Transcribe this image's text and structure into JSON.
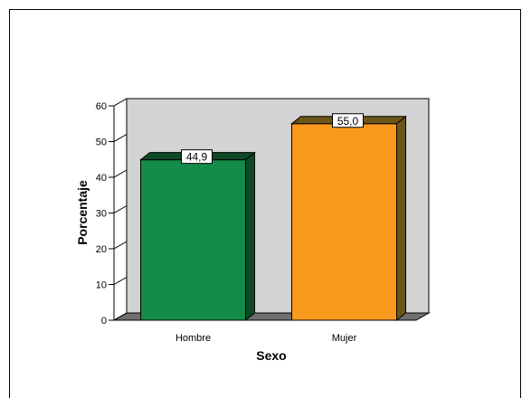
{
  "chart_data": {
    "type": "bar",
    "categories": [
      "Hombre",
      "Mujer"
    ],
    "values": [
      44.9,
      55.0
    ],
    "data_labels": [
      "44,9",
      "55,0"
    ],
    "xlabel": "Sexo",
    "ylabel": "Porcentaje",
    "ylim": [
      0,
      60
    ],
    "yticks": [
      "0",
      "10",
      "20",
      "30",
      "40",
      "50",
      "60"
    ],
    "bar_colors": [
      "#128c48",
      "#f99a1f"
    ],
    "bar_side_colors": [
      "#0c4a26",
      "#6b5618"
    ],
    "plot_background": "#d3d3d3",
    "floor_color": "#707070",
    "style": "3d-bar",
    "grid": false,
    "legend": "none"
  }
}
